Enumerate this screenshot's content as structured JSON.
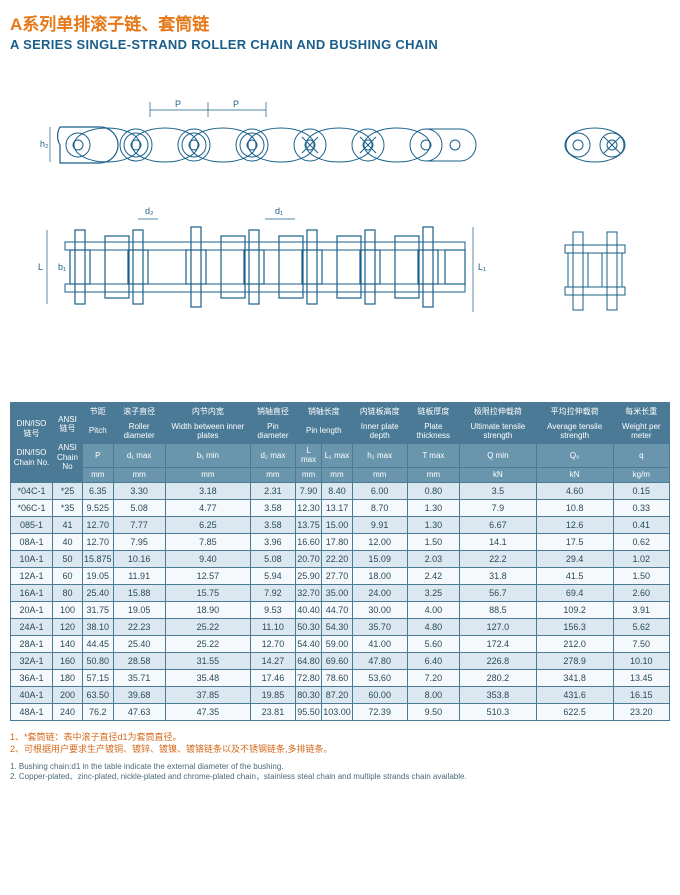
{
  "title": {
    "cn": "A系列单排滚子链、套筒链",
    "en": "A SERIES SINGLE-STRAND ROLLER CHAIN AND BUSHING CHAIN"
  },
  "colors": {
    "accent": "#e67817",
    "heading": "#1a5f8a",
    "header_bg": "#4a7a95",
    "subheader_bg": "#6a96ad",
    "row_odd": "#dce8ef",
    "row_even": "#f5f9fb",
    "diagram": "#1a5f8a"
  },
  "diagram": {
    "labels": {
      "p": "P",
      "h2": "h₂",
      "d2": "d₂",
      "d1": "d₁",
      "b1": "b₁",
      "L": "L",
      "L1": "L₁"
    }
  },
  "headers": {
    "iso_cn": "DIN/ISO\n链号",
    "iso_en": "DIN/ISO\nChain\nNo.",
    "ansi_cn": "ANSI\n链号",
    "ansi_en": "ANSI\nChain\nNo",
    "cols": [
      {
        "cn": "节距",
        "en": "Pitch",
        "sym": "P",
        "unit": "mm"
      },
      {
        "cn": "滚子直径",
        "en": "Roller\ndiameter",
        "sym": "d₁\nmax",
        "unit": "mm"
      },
      {
        "cn": "内节内宽",
        "en": "Width\nbetween\ninner plates",
        "sym": "b₁\nmin",
        "unit": "mm"
      },
      {
        "cn": "销轴直径",
        "en": "Pin\ndiameter",
        "sym": "d₂\nmax",
        "unit": "mm"
      },
      {
        "cn": "销轴长度",
        "en": "Pin\nlength",
        "sym": "L\nmax",
        "unit": "mm",
        "span2": true,
        "sym2": "L₁\nmax",
        "unit2": "mm"
      },
      {
        "cn": "内链板高度",
        "en": "Inner\nplate\ndepth",
        "sym": "h₂\nmax",
        "unit": "mm"
      },
      {
        "cn": "链板厚度",
        "en": "Plate\nthickness",
        "sym": "T\nmax",
        "unit": "mm"
      },
      {
        "cn": "极限拉伸载荷",
        "en": "Ultimate\ntensile\nstrength",
        "sym": "Q\nmin",
        "unit": "kN"
      },
      {
        "cn": "平均拉伸载荷",
        "en": "Average\ntensile\nstrength",
        "sym": "Q₀",
        "unit": "kN"
      },
      {
        "cn": "每米长重",
        "en": "Weight\nper\nmeter",
        "sym": "q",
        "unit": "kg/m"
      }
    ]
  },
  "rows": [
    [
      "*04C-1",
      "*25",
      "6.35",
      "3.30",
      "3.18",
      "2.31",
      "7.90",
      "8.40",
      "6.00",
      "0.80",
      "3.5",
      "4.60",
      "0.15"
    ],
    [
      "*06C-1",
      "*35",
      "9.525",
      "5.08",
      "4.77",
      "3.58",
      "12.30",
      "13.17",
      "8.70",
      "1.30",
      "7.9",
      "10.8",
      "0.33"
    ],
    [
      "085-1",
      "41",
      "12.70",
      "7.77",
      "6.25",
      "3.58",
      "13.75",
      "15.00",
      "9.91",
      "1.30",
      "6.67",
      "12.6",
      "0.41"
    ],
    [
      "08A-1",
      "40",
      "12.70",
      "7.95",
      "7.85",
      "3.96",
      "16.60",
      "17.80",
      "12.00",
      "1.50",
      "14.1",
      "17.5",
      "0.62"
    ],
    [
      "10A-1",
      "50",
      "15.875",
      "10.16",
      "9.40",
      "5.08",
      "20.70",
      "22.20",
      "15.09",
      "2.03",
      "22.2",
      "29.4",
      "1.02"
    ],
    [
      "12A-1",
      "60",
      "19.05",
      "11.91",
      "12.57",
      "5.94",
      "25.90",
      "27.70",
      "18.00",
      "2.42",
      "31.8",
      "41.5",
      "1.50"
    ],
    [
      "16A-1",
      "80",
      "25.40",
      "15.88",
      "15.75",
      "7.92",
      "32.70",
      "35.00",
      "24.00",
      "3.25",
      "56.7",
      "69.4",
      "2.60"
    ],
    [
      "20A-1",
      "100",
      "31.75",
      "19.05",
      "18.90",
      "9.53",
      "40.40",
      "44.70",
      "30.00",
      "4.00",
      "88.5",
      "109.2",
      "3.91"
    ],
    [
      "24A-1",
      "120",
      "38.10",
      "22.23",
      "25.22",
      "11.10",
      "50.30",
      "54.30",
      "35.70",
      "4.80",
      "127.0",
      "156.3",
      "5.62"
    ],
    [
      "28A-1",
      "140",
      "44.45",
      "25.40",
      "25.22",
      "12.70",
      "54.40",
      "59.00",
      "41.00",
      "5.60",
      "172.4",
      "212.0",
      "7.50"
    ],
    [
      "32A-1",
      "160",
      "50.80",
      "28.58",
      "31.55",
      "14.27",
      "64.80",
      "69.60",
      "47.80",
      "6.40",
      "226.8",
      "278.9",
      "10.10"
    ],
    [
      "36A-1",
      "180",
      "57.15",
      "35.71",
      "35.48",
      "17.46",
      "72.80",
      "78.60",
      "53.60",
      "7.20",
      "280.2",
      "341.8",
      "13.45"
    ],
    [
      "40A-1",
      "200",
      "63.50",
      "39.68",
      "37.85",
      "19.85",
      "80.30",
      "87.20",
      "60.00",
      "8.00",
      "353.8",
      "431.6",
      "16.15"
    ],
    [
      "48A-1",
      "240",
      "76.2",
      "47.63",
      "47.35",
      "23.81",
      "95.50",
      "103.00",
      "72.39",
      "9.50",
      "510.3",
      "622.5",
      "23.20"
    ]
  ],
  "notes": {
    "cn1": "1、*套筒链：表中滚子直径d1为套筒直径。",
    "cn2": "2、可根据用户要求生产镀铜、镀锌、镀镍、镀铬链条以及不锈钢链条,多排链条。",
    "en1": "1. Bushing chain:d1 in the table indicate the external diameter of the bushing.",
    "en2": "2. Copper-plated、zinc-plated, nickle-plated and chrome-plated chain，stainless steal chain and multiple strands chain available."
  }
}
